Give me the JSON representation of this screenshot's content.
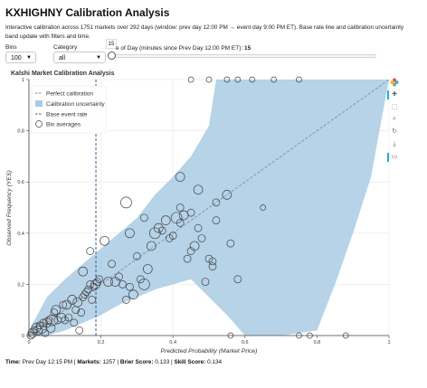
{
  "header": {
    "title": "KXHIGHNY Calibration Analysis",
    "description": "Interactive calibration across 1751 markets over 292 days (window: prev day 12:00 PM → event day 9:00 PM ET). Base rate line and calibration uncertainty band update with filters and time."
  },
  "controls": {
    "bins_label": "Bins",
    "bins_value": "100",
    "category_label": "Category",
    "category_value": "all",
    "slider_tooltip": "15",
    "slider_label_prefix": "e of Day (minutes since Prev Day 12:00 PM ET): ",
    "slider_value": "15",
    "slider_fraction": 0.0
  },
  "toolbar": {
    "icons": [
      "bokeh-logo-icon",
      "pan-icon",
      "box-zoom-icon",
      "wheel-zoom-icon",
      "reset-icon",
      "save-icon",
      "hover-icon"
    ],
    "glyphs": [
      "✚",
      "⬚",
      "⌕",
      "↻",
      "⤓",
      "▭"
    ]
  },
  "chart_data": {
    "type": "scatter",
    "title": "Kalshi Market Calibration Analysis",
    "xlabel": "Predicted Probability (Market Price)",
    "ylabel": "Observed Frequency (YES)",
    "xlim": [
      0,
      1
    ],
    "ylim": [
      0,
      1
    ],
    "x_ticks": [
      "0",
      "0.2",
      "0.4",
      "0.6",
      "0.8",
      "1"
    ],
    "y_ticks": [
      "0",
      "0.2",
      "0.4",
      "0.6",
      "0.8",
      "1"
    ],
    "grid": true,
    "legend_placement": "top-left",
    "legend": {
      "perfect": "Perfect calibration",
      "band": "Calibration uncertainty",
      "base": "Base event rate",
      "bins": "Bin averages"
    },
    "base_rate": 0.186,
    "band_lower": [
      [
        0,
        0
      ],
      [
        0.02,
        0
      ],
      [
        0.05,
        0
      ],
      [
        0.1,
        0.02
      ],
      [
        0.15,
        0.05
      ],
      [
        0.2,
        0.08
      ],
      [
        0.25,
        0.12
      ],
      [
        0.3,
        0.15
      ],
      [
        0.35,
        0.18
      ],
      [
        0.4,
        0.2
      ],
      [
        0.45,
        0.22
      ],
      [
        0.5,
        0.15
      ],
      [
        0.55,
        0.08
      ],
      [
        0.6,
        0
      ],
      [
        0.7,
        0
      ],
      [
        0.8,
        0.02
      ],
      [
        0.85,
        0.2
      ],
      [
        0.9,
        0.4
      ],
      [
        0.95,
        0.62
      ],
      [
        0.98,
        0.85
      ],
      [
        1,
        1
      ]
    ],
    "band_upper": [
      [
        0,
        0.02
      ],
      [
        0.05,
        0.15
      ],
      [
        0.1,
        0.22
      ],
      [
        0.15,
        0.28
      ],
      [
        0.2,
        0.34
      ],
      [
        0.25,
        0.4
      ],
      [
        0.3,
        0.46
      ],
      [
        0.35,
        0.55
      ],
      [
        0.4,
        0.62
      ],
      [
        0.45,
        0.7
      ],
      [
        0.5,
        0.82
      ],
      [
        0.52,
        1
      ],
      [
        1,
        1
      ]
    ],
    "points": [
      {
        "x": 0.005,
        "y": 0.0,
        "s": 4
      },
      {
        "x": 0.01,
        "y": 0.01,
        "s": 5
      },
      {
        "x": 0.015,
        "y": 0.02,
        "s": 4
      },
      {
        "x": 0.02,
        "y": 0.03,
        "s": 5
      },
      {
        "x": 0.025,
        "y": 0.02,
        "s": 5
      },
      {
        "x": 0.03,
        "y": 0.04,
        "s": 4
      },
      {
        "x": 0.035,
        "y": 0.03,
        "s": 6
      },
      {
        "x": 0.04,
        "y": 0.05,
        "s": 4
      },
      {
        "x": 0.045,
        "y": 0.01,
        "s": 4
      },
      {
        "x": 0.05,
        "y": 0.05,
        "s": 5
      },
      {
        "x": 0.055,
        "y": 0.06,
        "s": 4
      },
      {
        "x": 0.06,
        "y": 0.03,
        "s": 5
      },
      {
        "x": 0.065,
        "y": 0.06,
        "s": 6
      },
      {
        "x": 0.07,
        "y": 0.09,
        "s": 4
      },
      {
        "x": 0.075,
        "y": 0.1,
        "s": 5
      },
      {
        "x": 0.08,
        "y": 0.06,
        "s": 4
      },
      {
        "x": 0.09,
        "y": 0.07,
        "s": 5
      },
      {
        "x": 0.095,
        "y": 0.12,
        "s": 4
      },
      {
        "x": 0.1,
        "y": 0.06,
        "s": 4
      },
      {
        "x": 0.105,
        "y": 0.12,
        "s": 5
      },
      {
        "x": 0.11,
        "y": 0.07,
        "s": 4
      },
      {
        "x": 0.12,
        "y": 0.14,
        "s": 5
      },
      {
        "x": 0.125,
        "y": 0.05,
        "s": 4
      },
      {
        "x": 0.13,
        "y": 0.1,
        "s": 4
      },
      {
        "x": 0.135,
        "y": 0.13,
        "s": 5
      },
      {
        "x": 0.14,
        "y": 0.02,
        "s": 4
      },
      {
        "x": 0.145,
        "y": 0.09,
        "s": 4
      },
      {
        "x": 0.15,
        "y": 0.15,
        "s": 4
      },
      {
        "x": 0.155,
        "y": 0.16,
        "s": 4
      },
      {
        "x": 0.16,
        "y": 0.17,
        "s": 4
      },
      {
        "x": 0.165,
        "y": 0.18,
        "s": 4
      },
      {
        "x": 0.17,
        "y": 0.2,
        "s": 4
      },
      {
        "x": 0.175,
        "y": 0.14,
        "s": 4
      },
      {
        "x": 0.18,
        "y": 0.19,
        "s": 4
      },
      {
        "x": 0.185,
        "y": 0.2,
        "s": 5
      },
      {
        "x": 0.19,
        "y": 0.21,
        "s": 4
      },
      {
        "x": 0.195,
        "y": 0.22,
        "s": 4
      },
      {
        "x": 0.15,
        "y": 0.25,
        "s": 5
      },
      {
        "x": 0.17,
        "y": 0.33,
        "s": 4
      },
      {
        "x": 0.21,
        "y": 0.37,
        "s": 5
      },
      {
        "x": 0.22,
        "y": 0.21,
        "s": 5
      },
      {
        "x": 0.23,
        "y": 0.28,
        "s": 4
      },
      {
        "x": 0.24,
        "y": 0.21,
        "s": 5
      },
      {
        "x": 0.25,
        "y": 0.23,
        "s": 4
      },
      {
        "x": 0.26,
        "y": 0.2,
        "s": 4
      },
      {
        "x": 0.27,
        "y": 0.14,
        "s": 4
      },
      {
        "x": 0.28,
        "y": 0.19,
        "s": 4
      },
      {
        "x": 0.29,
        "y": 0.16,
        "s": 5
      },
      {
        "x": 0.3,
        "y": 0.31,
        "s": 4
      },
      {
        "x": 0.31,
        "y": 0.22,
        "s": 4
      },
      {
        "x": 0.32,
        "y": 0.2,
        "s": 6
      },
      {
        "x": 0.33,
        "y": 0.26,
        "s": 5
      },
      {
        "x": 0.27,
        "y": 0.52,
        "s": 6
      },
      {
        "x": 0.28,
        "y": 0.4,
        "s": 5
      },
      {
        "x": 0.34,
        "y": 0.35,
        "s": 5
      },
      {
        "x": 0.35,
        "y": 0.4,
        "s": 6
      },
      {
        "x": 0.36,
        "y": 0.42,
        "s": 5
      },
      {
        "x": 0.37,
        "y": 0.41,
        "s": 4
      },
      {
        "x": 0.38,
        "y": 0.45,
        "s": 5
      },
      {
        "x": 0.39,
        "y": 0.38,
        "s": 4
      },
      {
        "x": 0.41,
        "y": 0.46,
        "s": 6
      },
      {
        "x": 0.42,
        "y": 0.44,
        "s": 4
      },
      {
        "x": 0.43,
        "y": 0.47,
        "s": 5
      },
      {
        "x": 0.44,
        "y": 0.3,
        "s": 4
      },
      {
        "x": 0.45,
        "y": 0.33,
        "s": 4
      },
      {
        "x": 0.46,
        "y": 0.35,
        "s": 5
      },
      {
        "x": 0.47,
        "y": 0.42,
        "s": 4
      },
      {
        "x": 0.48,
        "y": 0.38,
        "s": 4
      },
      {
        "x": 0.5,
        "y": 0.3,
        "s": 4
      },
      {
        "x": 0.51,
        "y": 0.29,
        "s": 4
      },
      {
        "x": 0.47,
        "y": 0.57,
        "s": 5
      },
      {
        "x": 0.42,
        "y": 0.62,
        "s": 5
      },
      {
        "x": 0.52,
        "y": 0.45,
        "s": 4
      },
      {
        "x": 0.45,
        "y": 0.48,
        "s": 4
      },
      {
        "x": 0.51,
        "y": 0.27,
        "s": 4
      },
      {
        "x": 0.42,
        "y": 0.5,
        "s": 4
      },
      {
        "x": 0.32,
        "y": 0.46,
        "s": 4
      },
      {
        "x": 0.4,
        "y": 0.39,
        "s": 4
      },
      {
        "x": 0.55,
        "y": 0.55,
        "s": 5
      },
      {
        "x": 0.58,
        "y": 0.22,
        "s": 4
      },
      {
        "x": 0.49,
        "y": 0.21,
        "s": 4
      },
      {
        "x": 0.52,
        "y": 0.52,
        "s": 4
      },
      {
        "x": 0.65,
        "y": 0.5,
        "s": 3
      },
      {
        "x": 0.56,
        "y": 0.36,
        "s": 4
      },
      {
        "x": 0.45,
        "y": 1.0,
        "s": 3
      },
      {
        "x": 0.5,
        "y": 1.0,
        "s": 3
      },
      {
        "x": 0.55,
        "y": 1.0,
        "s": 3
      },
      {
        "x": 0.58,
        "y": 1.0,
        "s": 3
      },
      {
        "x": 0.62,
        "y": 1.0,
        "s": 3
      },
      {
        "x": 0.68,
        "y": 1.0,
        "s": 3
      },
      {
        "x": 0.75,
        "y": 1.0,
        "s": 3
      },
      {
        "x": 0.56,
        "y": 0.0,
        "s": 3
      },
      {
        "x": 0.75,
        "y": 0.0,
        "s": 3
      },
      {
        "x": 0.78,
        "y": 0.0,
        "s": 3
      },
      {
        "x": 0.88,
        "y": 0.0,
        "s": 3
      }
    ]
  },
  "footer": {
    "time_label": "Time:",
    "time_value": "Prev Day 12:15 PM",
    "markets_label": "Markets:",
    "markets_value": "1257",
    "brier_label": "Brier Score:",
    "brier_value": "0.133",
    "skill_label": "Skill Score:",
    "skill_value": "0.134"
  },
  "colors": {
    "band": "#a9cbe4",
    "perfect_line": "#8a8a8a",
    "base_line": "#2e5f93",
    "marker": "#444444",
    "accent": "#26aae1"
  }
}
